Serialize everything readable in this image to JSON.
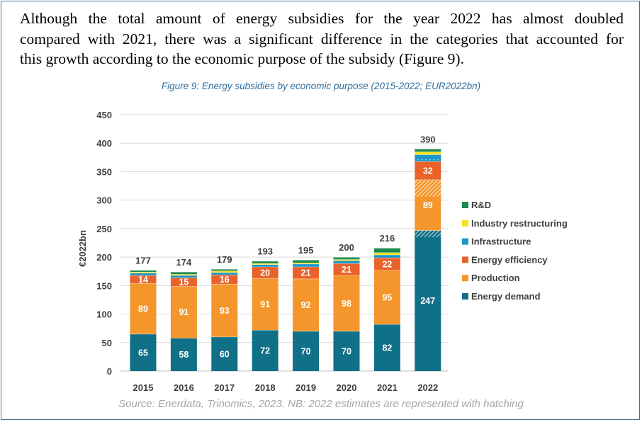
{
  "intro": {
    "lines": [
      "Although the total amount of energy subsidies for the year 2022 has almost doubled",
      "compared with 2021, there was a significant difference in the categories that accounted for",
      "this growth according to the economic purpose of the subsidy (Figure 9)."
    ]
  },
  "colors": {
    "Energy demand": "#0f7088",
    "Production": "#f4962c",
    "Energy efficiency": "#e8622a",
    "Infrastructure": "#1b96c8",
    "Industry restructuring": "#f3e21f",
    "R&D": "#1e8a4e"
  },
  "chart_data": {
    "type": "bar",
    "stacked": true,
    "title": "Figure 9: Energy subsidies by economic purpose (2015-2022; EUR2022bn)",
    "ylabel": "€2022bn",
    "xlabel": "",
    "ylim": [
      0,
      450
    ],
    "yticks": [
      0,
      50,
      100,
      150,
      200,
      250,
      300,
      350,
      400,
      450
    ],
    "grid": true,
    "legend_position": "right",
    "categories": [
      "2015",
      "2016",
      "2017",
      "2018",
      "2019",
      "2020",
      "2021",
      "2022"
    ],
    "series": [
      {
        "name": "Energy demand",
        "values": [
          65,
          58,
          60,
          72,
          70,
          70,
          82,
          247
        ],
        "labels": [
          "65",
          "58",
          "60",
          "72",
          "70",
          "70",
          "82",
          "247"
        ]
      },
      {
        "name": "Production",
        "values": [
          89,
          91,
          93,
          91,
          92,
          98,
          95,
          89
        ],
        "labels": [
          "89",
          "91",
          "93",
          "91",
          "92",
          "98",
          "95",
          "89"
        ]
      },
      {
        "name": "Energy efficiency",
        "values": [
          14,
          15,
          16,
          20,
          21,
          21,
          22,
          32
        ],
        "labels": [
          "14",
          "15",
          "16",
          "20",
          "21",
          "21",
          "22",
          "32"
        ]
      },
      {
        "name": "Infrastructure",
        "values": [
          4,
          4,
          4,
          4,
          5,
          5,
          5,
          12
        ],
        "labels": [
          "",
          "",
          "",
          "",
          "",
          "",
          "",
          ""
        ]
      },
      {
        "name": "Industry restructuring",
        "values": [
          2,
          2,
          3,
          2,
          2,
          2,
          4,
          5
        ],
        "labels": [
          "",
          "",
          "",
          "",
          "",
          "",
          "",
          ""
        ]
      },
      {
        "name": "R&D",
        "values": [
          3,
          4,
          3,
          4,
          5,
          4,
          8,
          5
        ],
        "labels": [
          "",
          "",
          "",
          "",
          "",
          "",
          "",
          ""
        ]
      }
    ],
    "totals": [
      "177",
      "174",
      "179",
      "193",
      "195",
      "200",
      "216",
      "390"
    ],
    "hatched_estimates": [
      {
        "category": "2022",
        "series": "Energy demand",
        "from": 235,
        "to": 247
      },
      {
        "category": "2022",
        "series": "Production",
        "from": 306,
        "to": 336
      },
      {
        "category": "2022",
        "series": "Infrastructure",
        "from": 370,
        "to": 372
      }
    ],
    "legend_order": [
      "R&D",
      "Industry restructuring",
      "Infrastructure",
      "Energy efficiency",
      "Production",
      "Energy demand"
    ]
  },
  "source": "Source: Enerdata, Trinomics, 2023. NB: 2022 estimates are represented with hatching"
}
